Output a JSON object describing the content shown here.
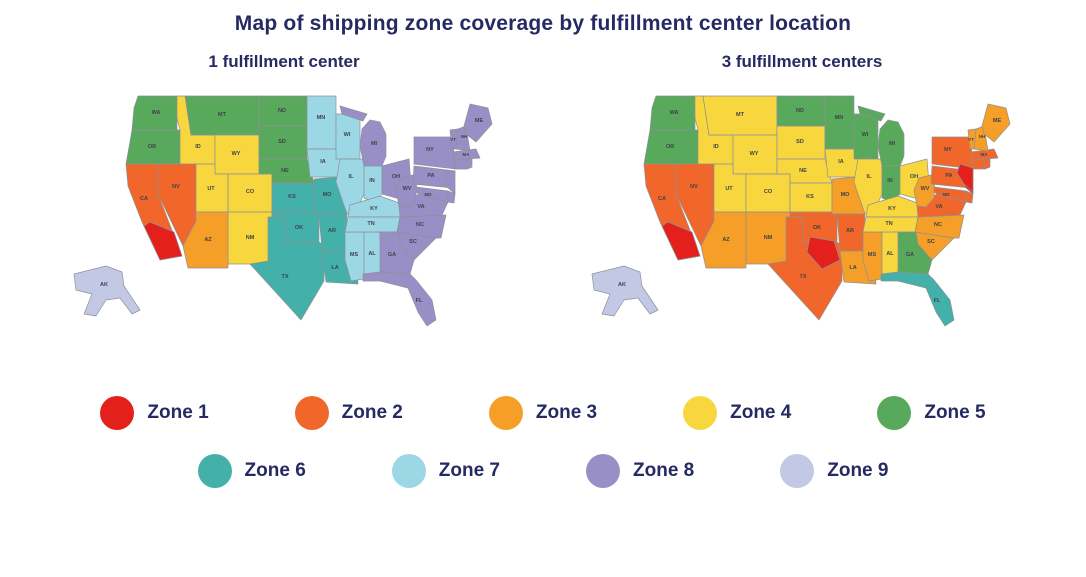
{
  "title": "Map of shipping zone coverage by fulfillment center location",
  "maps": [
    {
      "id": "1fc",
      "subtitle": "1 fulfillment center",
      "zone_key": "zone_1fc"
    },
    {
      "id": "3fc",
      "subtitle": "3 fulfillment centers",
      "zone_key": "zone_3fc"
    }
  ],
  "legend": {
    "rows": [
      [
        {
          "zone": 1,
          "label": "Zone 1",
          "color": "#e3201b"
        },
        {
          "zone": 2,
          "label": "Zone 2",
          "color": "#f1662a"
        },
        {
          "zone": 3,
          "label": "Zone 3",
          "color": "#f59e28"
        },
        {
          "zone": 4,
          "label": "Zone 4",
          "color": "#f8d73e"
        },
        {
          "zone": 5,
          "label": "Zone 5",
          "color": "#58a95c"
        }
      ],
      [
        {
          "zone": 6,
          "label": "Zone 6",
          "color": "#43b0a9"
        },
        {
          "zone": 7,
          "label": "Zone 7",
          "color": "#9bd7e5"
        },
        {
          "zone": 8,
          "label": "Zone 8",
          "color": "#988fc6"
        },
        {
          "zone": 9,
          "label": "Zone 9",
          "color": "#c3c9e5"
        }
      ]
    ]
  },
  "chart_data": {
    "type": "choropleth-map",
    "zone_colors": {
      "1": "#e3201b",
      "2": "#f1662a",
      "3": "#f59e28",
      "4": "#f8d73e",
      "5": "#58a95c",
      "6": "#43b0a9",
      "7": "#9bd7e5",
      "8": "#988fc6",
      "9": "#c3c9e5"
    },
    "states": [
      {
        "abbr": "WA",
        "zone_1fc": 5,
        "zone_3fc": 5
      },
      {
        "abbr": "OR",
        "zone_1fc": 5,
        "zone_3fc": 5
      },
      {
        "abbr": "CA",
        "zone_1fc": 2,
        "zone_3fc": 2
      },
      {
        "abbr": "NV",
        "zone_1fc": 2,
        "zone_3fc": 2
      },
      {
        "abbr": "ID",
        "zone_1fc": 4,
        "zone_3fc": 4
      },
      {
        "abbr": "MT",
        "zone_1fc": 5,
        "zone_3fc": 4
      },
      {
        "abbr": "WY",
        "zone_1fc": 4,
        "zone_3fc": 4
      },
      {
        "abbr": "UT",
        "zone_1fc": 4,
        "zone_3fc": 4
      },
      {
        "abbr": "CO",
        "zone_1fc": 4,
        "zone_3fc": 4
      },
      {
        "abbr": "NM",
        "zone_1fc": 4,
        "zone_3fc": 3
      },
      {
        "abbr": "AZ",
        "zone_1fc": 3,
        "zone_3fc": 3
      },
      {
        "abbr": "ND",
        "zone_1fc": 5,
        "zone_3fc": 5
      },
      {
        "abbr": "SD",
        "zone_1fc": 5,
        "zone_3fc": 4
      },
      {
        "abbr": "NE",
        "zone_1fc": 5,
        "zone_3fc": 4
      },
      {
        "abbr": "KS",
        "zone_1fc": 6,
        "zone_3fc": 4
      },
      {
        "abbr": "OK",
        "zone_1fc": 6,
        "zone_3fc": 2
      },
      {
        "abbr": "TX",
        "zone_1fc": 6,
        "zone_3fc": 2
      },
      {
        "abbr": "MN",
        "zone_1fc": 7,
        "zone_3fc": 5
      },
      {
        "abbr": "IA",
        "zone_1fc": 7,
        "zone_3fc": 4
      },
      {
        "abbr": "MO",
        "zone_1fc": 6,
        "zone_3fc": 3
      },
      {
        "abbr": "AR",
        "zone_1fc": 6,
        "zone_3fc": 2
      },
      {
        "abbr": "LA",
        "zone_1fc": 6,
        "zone_3fc": 3
      },
      {
        "abbr": "WI",
        "zone_1fc": 7,
        "zone_3fc": 5
      },
      {
        "abbr": "IL",
        "zone_1fc": 7,
        "zone_3fc": 4
      },
      {
        "abbr": "MS",
        "zone_1fc": 7,
        "zone_3fc": 3
      },
      {
        "abbr": "AL",
        "zone_1fc": 7,
        "zone_3fc": 4
      },
      {
        "abbr": "MI",
        "zone_1fc": 8,
        "zone_3fc": 5
      },
      {
        "abbr": "IN",
        "zone_1fc": 7,
        "zone_3fc": 5
      },
      {
        "abbr": "OH",
        "zone_1fc": 8,
        "zone_3fc": 4
      },
      {
        "abbr": "KY",
        "zone_1fc": 7,
        "zone_3fc": 4
      },
      {
        "abbr": "TN",
        "zone_1fc": 7,
        "zone_3fc": 4
      },
      {
        "abbr": "GA",
        "zone_1fc": 8,
        "zone_3fc": 5
      },
      {
        "abbr": "FL",
        "zone_1fc": 8,
        "zone_3fc": 6
      },
      {
        "abbr": "SC",
        "zone_1fc": 8,
        "zone_3fc": 3
      },
      {
        "abbr": "NC",
        "zone_1fc": 8,
        "zone_3fc": 3
      },
      {
        "abbr": "VA",
        "zone_1fc": 8,
        "zone_3fc": 2
      },
      {
        "abbr": "WV",
        "zone_1fc": 8,
        "zone_3fc": 3
      },
      {
        "abbr": "PA",
        "zone_1fc": 8,
        "zone_3fc": 2
      },
      {
        "abbr": "NY",
        "zone_1fc": 8,
        "zone_3fc": 2
      },
      {
        "abbr": "NJ",
        "zone_1fc": 8,
        "zone_3fc": 1
      },
      {
        "abbr": "MD",
        "zone_1fc": 8,
        "zone_3fc": 2
      },
      {
        "abbr": "DE",
        "zone_1fc": 8,
        "zone_3fc": 2
      },
      {
        "abbr": "CT",
        "zone_1fc": 8,
        "zone_3fc": 2
      },
      {
        "abbr": "RI",
        "zone_1fc": 8,
        "zone_3fc": 2
      },
      {
        "abbr": "MA",
        "zone_1fc": 8,
        "zone_3fc": 2
      },
      {
        "abbr": "VT",
        "zone_1fc": 8,
        "zone_3fc": 3
      },
      {
        "abbr": "NH",
        "zone_1fc": 8,
        "zone_3fc": 3
      },
      {
        "abbr": "ME",
        "zone_1fc": 8,
        "zone_3fc": 3
      },
      {
        "abbr": "AK",
        "zone_1fc": 9,
        "zone_3fc": 9
      }
    ],
    "overlays": [
      {
        "id": "CA_S",
        "zone": 1,
        "maps": [
          "1fc",
          "3fc"
        ]
      },
      {
        "id": "TX_C",
        "zone": 1,
        "maps": [
          "3fc"
        ]
      },
      {
        "id": "NYC",
        "zone": 1,
        "maps": [
          "3fc"
        ]
      }
    ]
  }
}
